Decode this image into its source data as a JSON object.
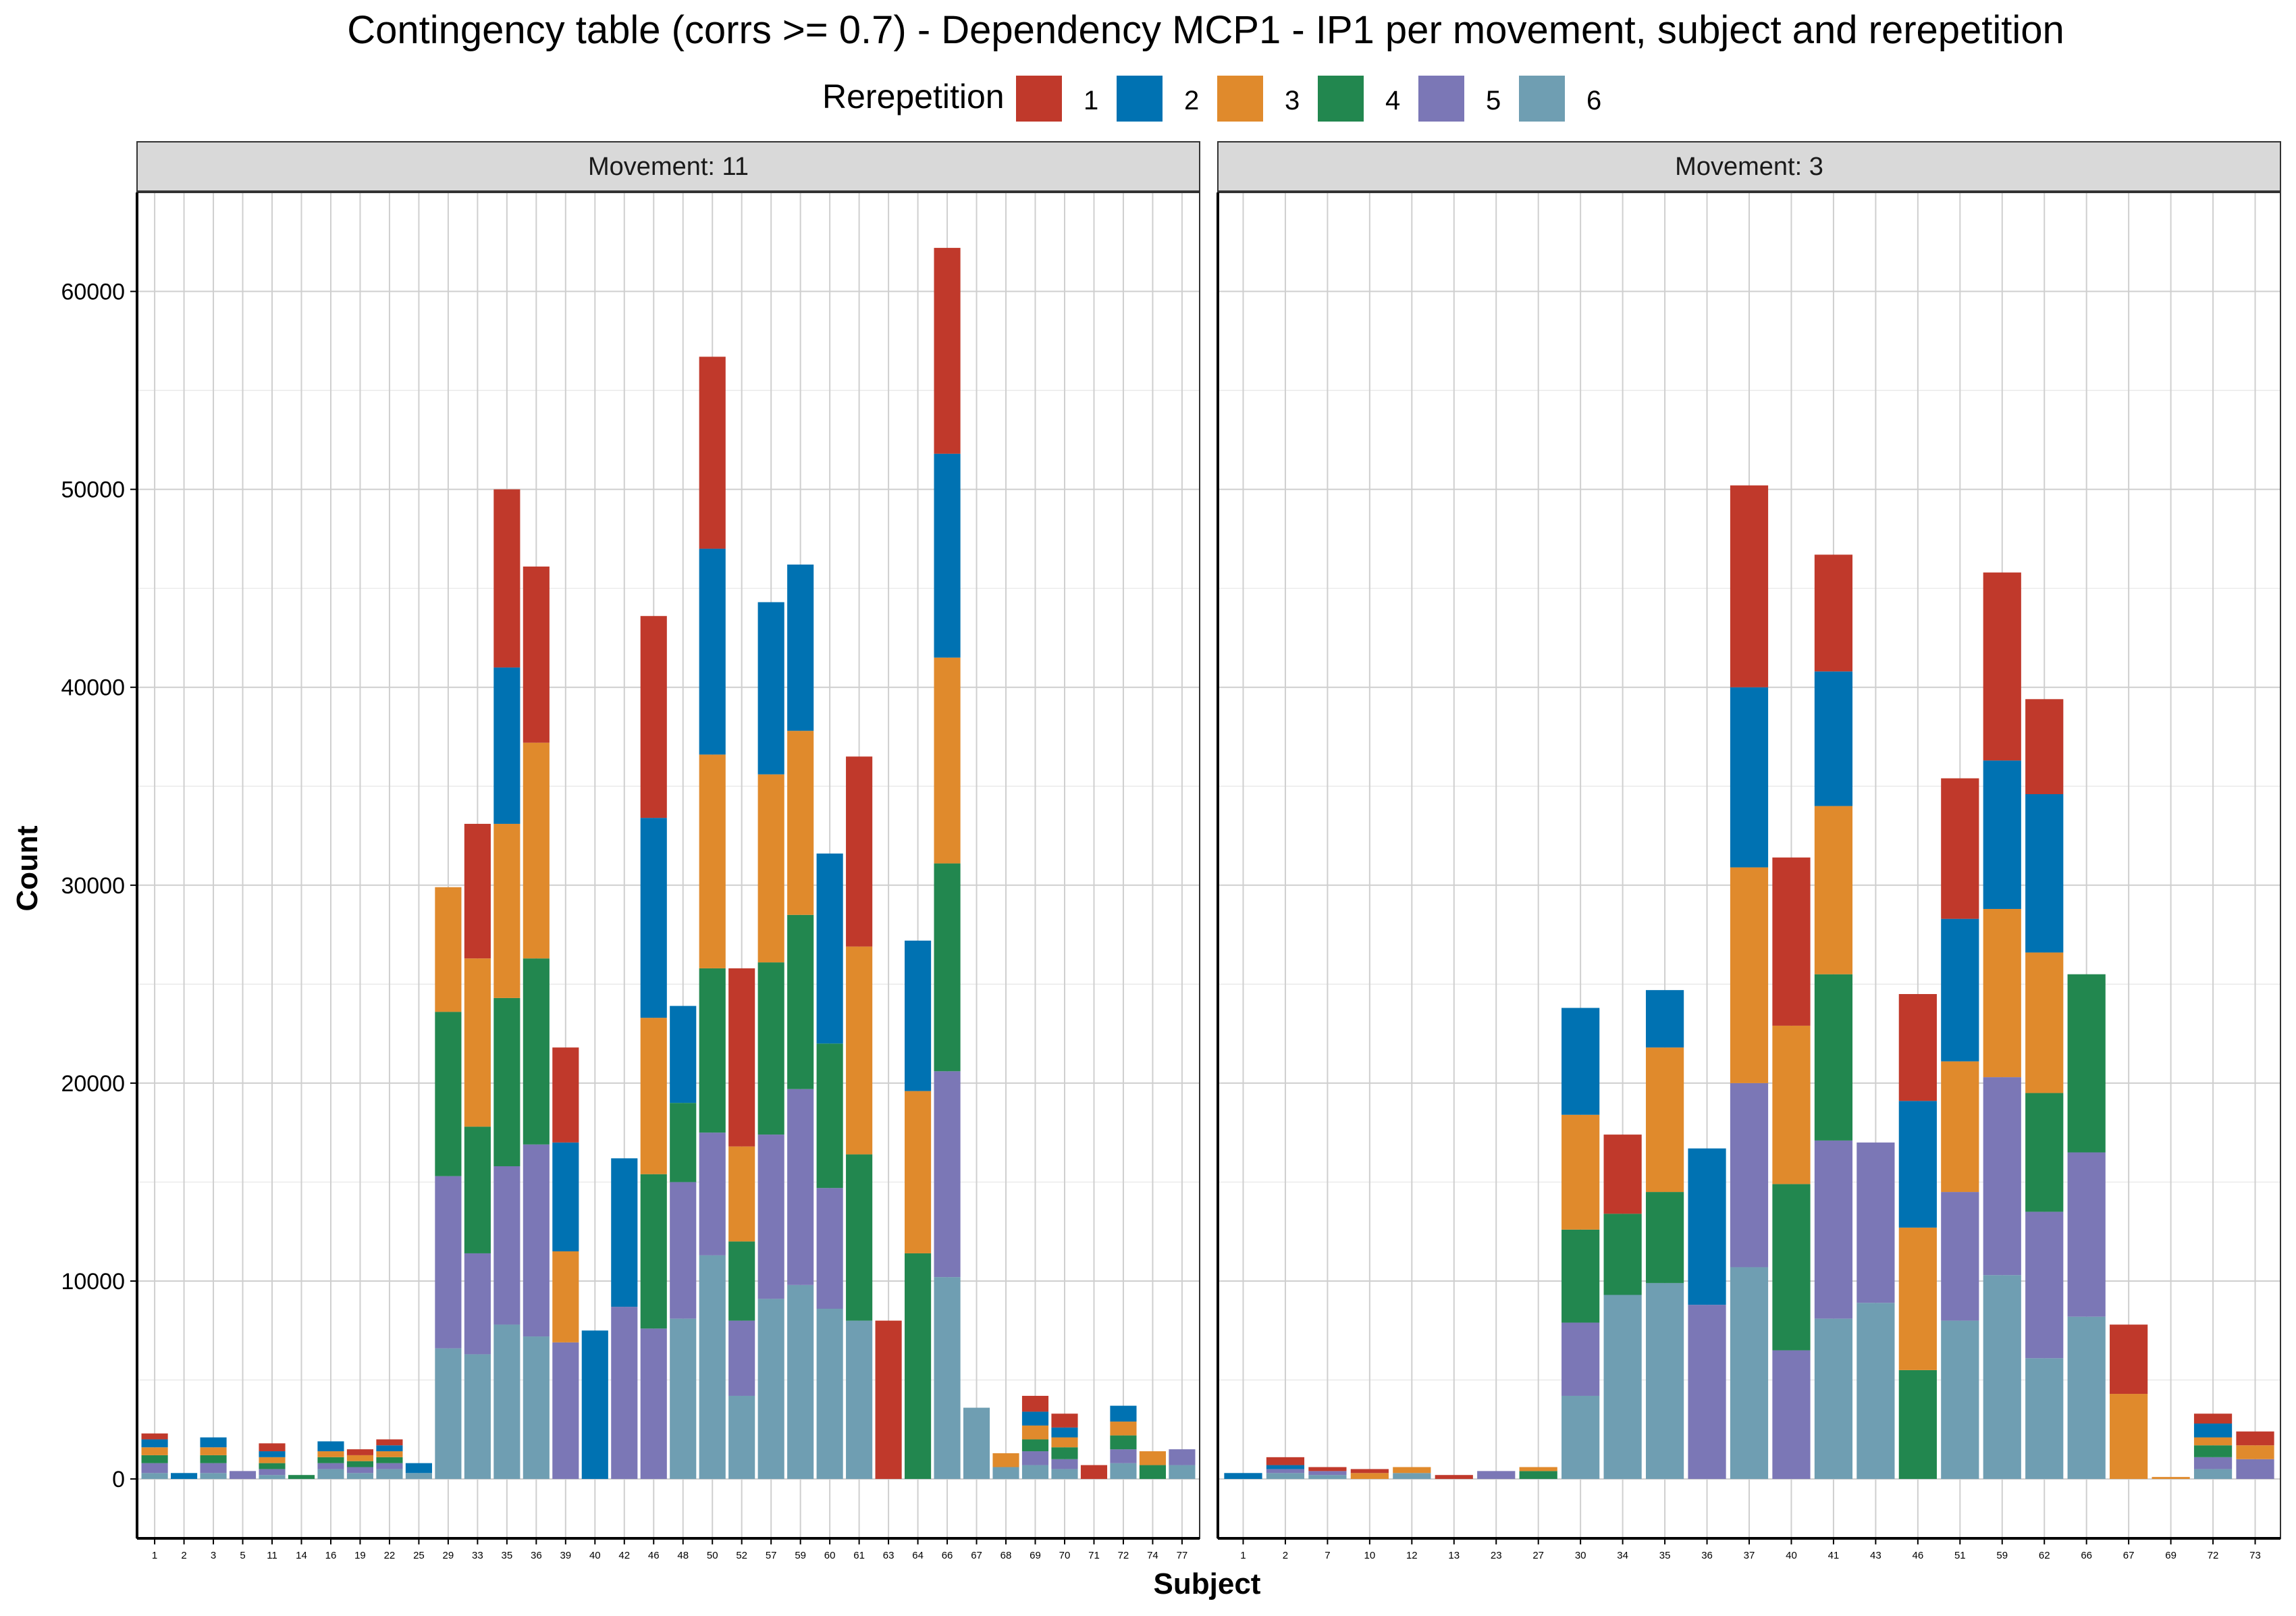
{
  "chart_data": {
    "type": "bar",
    "stacked": true,
    "title": "Contingency table (corrs >= 0.7) - Dependency MCP1 - IP1 per movement, subject and rerepetition",
    "xlabel": "Subject",
    "ylabel": "Count",
    "ylim": [
      -3000,
      65000
    ],
    "yticks": [
      0,
      10000,
      20000,
      30000,
      40000,
      50000,
      60000
    ],
    "grid": true,
    "legend": {
      "title": "Rerepetition",
      "position": "top",
      "entries": [
        {
          "name": "1",
          "color": "#c0392b"
        },
        {
          "name": "2",
          "color": "#0072b2"
        },
        {
          "name": "3",
          "color": "#e08a2c"
        },
        {
          "name": "4",
          "color": "#22874f"
        },
        {
          "name": "5",
          "color": "#7b77b6"
        },
        {
          "name": "6",
          "color": "#6f9eb2"
        }
      ]
    },
    "stack_order_bottom_to_top": [
      "6",
      "5",
      "4",
      "3",
      "2",
      "1"
    ],
    "panels": [
      {
        "label": "Movement: 11",
        "categories": [
          "1",
          "2",
          "3",
          "5",
          "11",
          "14",
          "16",
          "19",
          "22",
          "25",
          "29",
          "33",
          "35",
          "36",
          "39",
          "40",
          "42",
          "46",
          "48",
          "50",
          "52",
          "57",
          "59",
          "60",
          "61",
          "63",
          "64",
          "66",
          "67",
          "68",
          "69",
          "70",
          "71",
          "72",
          "74",
          "77"
        ],
        "series": [
          {
            "name": "6",
            "values": [
              300,
              0,
              300,
              0,
              200,
              0,
              500,
              300,
              500,
              300,
              6600,
              6300,
              7800,
              7200,
              0,
              0,
              0,
              0,
              8100,
              11300,
              4200,
              9100,
              9800,
              8600,
              8000,
              0,
              0,
              10200,
              3600,
              600,
              700,
              500,
              0,
              800,
              0,
              700
            ]
          },
          {
            "name": "5",
            "values": [
              500,
              0,
              500,
              400,
              300,
              0,
              300,
              300,
              300,
              0,
              8700,
              5100,
              8000,
              9700,
              6900,
              0,
              8700,
              7600,
              6900,
              6200,
              3800,
              8300,
              9900,
              6100,
              0,
              0,
              0,
              10400,
              0,
              0,
              700,
              500,
              0,
              700,
              0,
              800
            ]
          },
          {
            "name": "4",
            "values": [
              400,
              0,
              400,
              0,
              300,
              200,
              300,
              300,
              300,
              0,
              8300,
              6400,
              8500,
              9400,
              0,
              0,
              0,
              7800,
              4000,
              8300,
              4000,
              8700,
              8800,
              7300,
              8400,
              0,
              11400,
              10500,
              0,
              0,
              600,
              600,
              0,
              700,
              700,
              0
            ]
          },
          {
            "name": "3",
            "values": [
              400,
              0,
              400,
              0,
              300,
              0,
              300,
              300,
              300,
              0,
              6300,
              8500,
              8800,
              10900,
              4600,
              0,
              0,
              7900,
              0,
              10800,
              4800,
              9500,
              9300,
              0,
              10500,
              0,
              8200,
              10400,
              0,
              700,
              700,
              500,
              0,
              700,
              700,
              0
            ]
          },
          {
            "name": "2",
            "values": [
              400,
              300,
              500,
              0,
              300,
              0,
              500,
              0,
              300,
              500,
              0,
              0,
              7900,
              0,
              5500,
              7500,
              7500,
              10100,
              4900,
              10400,
              0,
              8700,
              8400,
              9600,
              0,
              0,
              7600,
              10300,
              0,
              0,
              700,
              500,
              0,
              800,
              0,
              0
            ]
          },
          {
            "name": "1",
            "values": [
              300,
              0,
              0,
              0,
              400,
              0,
              0,
              300,
              300,
              0,
              0,
              6800,
              9000,
              8900,
              4800,
              0,
              0,
              10200,
              0,
              9700,
              9000,
              0,
              0,
              0,
              9600,
              8000,
              0,
              10400,
              0,
              0,
              800,
              700,
              700,
              0,
              0,
              0
            ]
          }
        ]
      },
      {
        "label": "Movement: 3",
        "categories": [
          "1",
          "2",
          "7",
          "10",
          "12",
          "13",
          "23",
          "27",
          "30",
          "34",
          "35",
          "36",
          "37",
          "40",
          "41",
          "43",
          "46",
          "51",
          "59",
          "62",
          "66",
          "67",
          "69",
          "72",
          "73"
        ],
        "series": [
          {
            "name": "6",
            "values": [
              0,
              300,
              200,
              0,
              300,
              0,
              0,
              0,
              4200,
              9300,
              9900,
              0,
              10700,
              0,
              8100,
              8900,
              0,
              8000,
              10300,
              6100,
              8200,
              0,
              0,
              500,
              0
            ]
          },
          {
            "name": "5",
            "values": [
              0,
              200,
              200,
              0,
              0,
              0,
              400,
              0,
              3700,
              0,
              0,
              8800,
              9300,
              6500,
              9000,
              8100,
              0,
              6500,
              10000,
              7400,
              8300,
              0,
              0,
              600,
              1000
            ]
          },
          {
            "name": "4",
            "values": [
              0,
              0,
              0,
              0,
              0,
              0,
              0,
              400,
              4700,
              4100,
              4600,
              0,
              0,
              8400,
              8400,
              0,
              5500,
              0,
              0,
              6000,
              9000,
              0,
              0,
              600,
              0
            ]
          },
          {
            "name": "3",
            "values": [
              0,
              0,
              0,
              300,
              300,
              0,
              0,
              200,
              5800,
              0,
              7300,
              0,
              10900,
              8000,
              8500,
              0,
              7200,
              6600,
              8500,
              7100,
              0,
              4300,
              100,
              400,
              700
            ]
          },
          {
            "name": "2",
            "values": [
              300,
              200,
              0,
              0,
              0,
              0,
              0,
              0,
              5400,
              0,
              2900,
              7900,
              9100,
              0,
              6800,
              0,
              6400,
              7200,
              7500,
              8000,
              0,
              0,
              0,
              700,
              0
            ]
          },
          {
            "name": "1",
            "values": [
              0,
              400,
              200,
              200,
              0,
              200,
              0,
              0,
              0,
              4000,
              0,
              0,
              10200,
              8500,
              5900,
              0,
              5400,
              7100,
              9500,
              4800,
              0,
              3500,
              0,
              500,
              700
            ]
          }
        ]
      }
    ]
  }
}
